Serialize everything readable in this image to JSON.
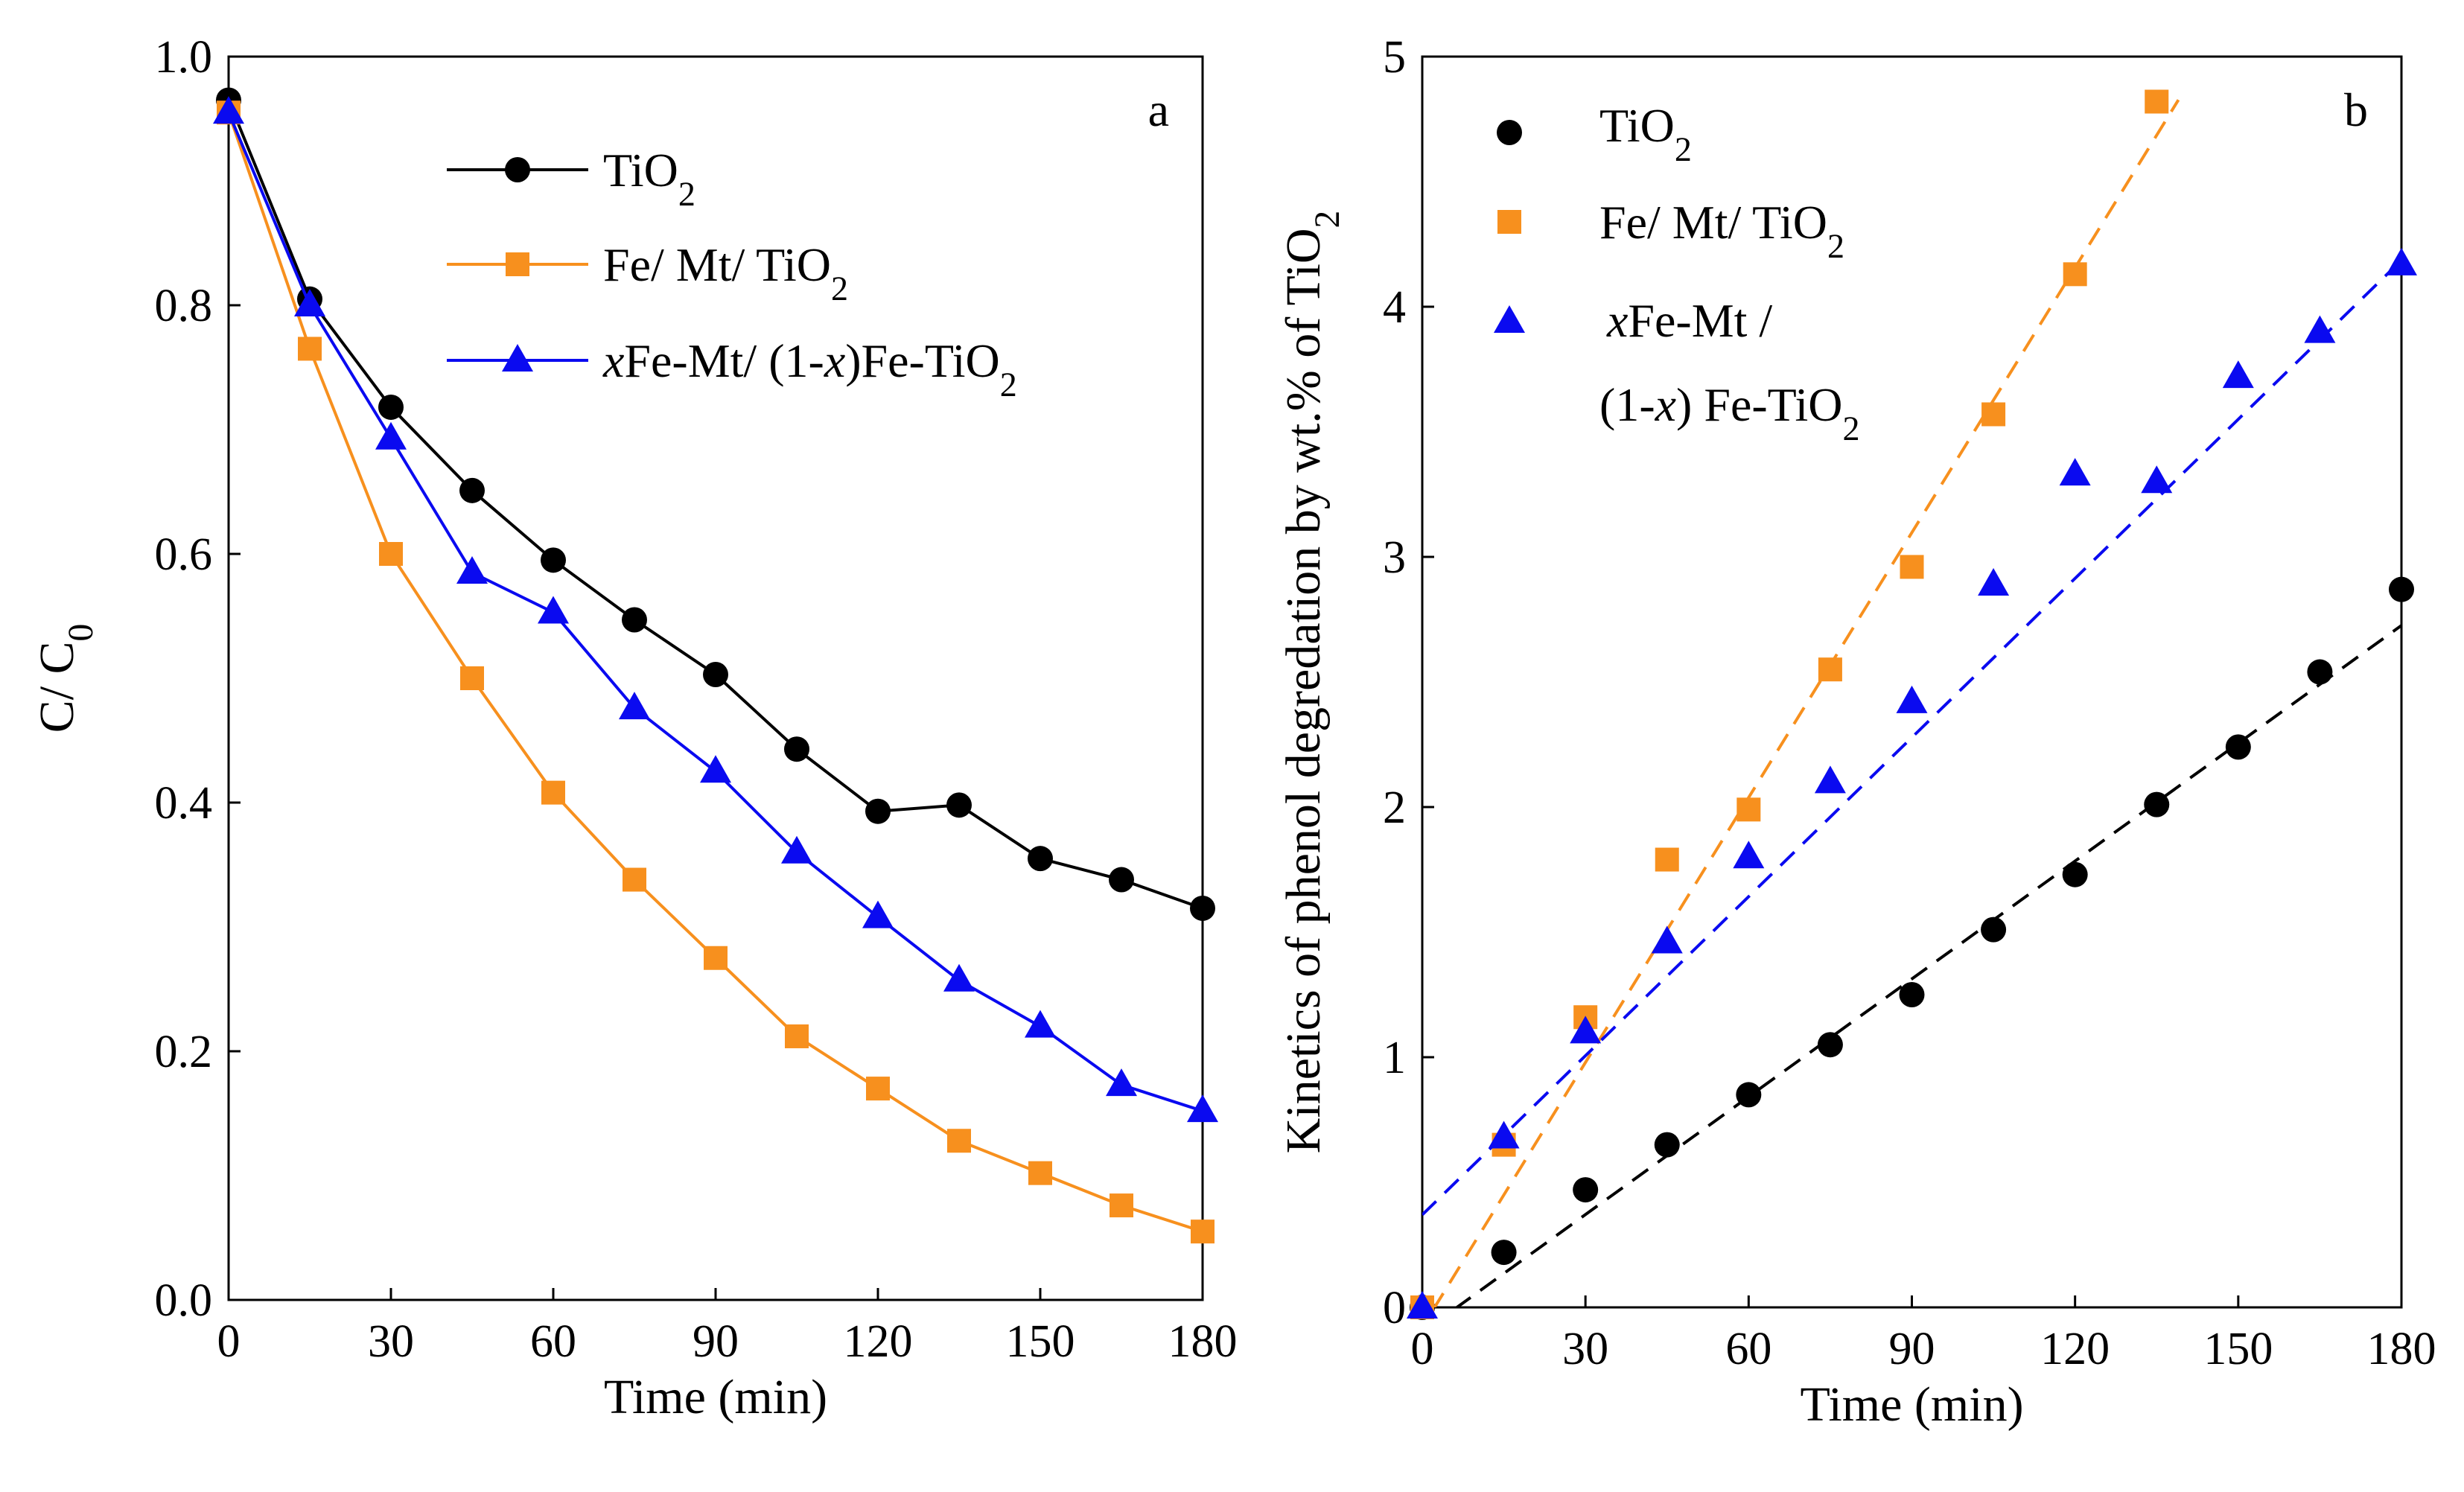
{
  "chart_data": [
    {
      "type": "line",
      "panel_label": "a",
      "xlabel": "Time (min)",
      "ylabel": {
        "main": "C/ C",
        "sub": "0"
      },
      "xlim": [
        0,
        180
      ],
      "ylim": [
        0.0,
        1.0
      ],
      "xticks": [
        0,
        30,
        60,
        90,
        120,
        150,
        180
      ],
      "xtick_labels": [
        "0",
        "30",
        "60",
        "90",
        "120",
        "150",
        "180"
      ],
      "yticks": [
        0.0,
        0.2,
        0.4,
        0.6,
        0.8,
        1.0
      ],
      "ytick_labels": [
        "0.0",
        "0.2",
        "0.4",
        "0.6",
        "0.8",
        "1.0"
      ],
      "legend_position": "top-right",
      "x": [
        0,
        15,
        30,
        45,
        60,
        75,
        90,
        105,
        120,
        135,
        150,
        165,
        180
      ],
      "series": [
        {
          "name": "TiO2",
          "legend": {
            "pre_italic": "",
            "pre": "TiO",
            "sub": "2",
            "italic": "",
            "post": ""
          },
          "color": "#000000",
          "marker": "circle",
          "values": [
            0.965,
            0.805,
            0.718,
            0.651,
            0.595,
            0.547,
            0.503,
            0.443,
            0.393,
            0.398,
            0.355,
            0.338,
            0.315
          ]
        },
        {
          "name": "Fe/ Mt/ TiO2",
          "legend": {
            "pre_italic": "",
            "pre": "Fe/ Mt/ TiO",
            "sub": "2",
            "italic": "",
            "post": ""
          },
          "color": "#f7901e",
          "marker": "square",
          "values": [
            0.955,
            0.765,
            0.6,
            0.5,
            0.408,
            0.338,
            0.275,
            0.212,
            0.17,
            0.128,
            0.102,
            0.076,
            0.055
          ]
        },
        {
          "name": "xFe-Mt/ (1-x)Fe-TiO2",
          "legend": {
            "pre_italic": "x",
            "pre": "Fe-Mt/ (1-",
            "italic": "x",
            "post": ")Fe-TiO",
            "sub": "2"
          },
          "color": "#0a0af0",
          "marker": "triangle",
          "values": [
            0.955,
            0.8,
            0.693,
            0.585,
            0.553,
            0.476,
            0.425,
            0.36,
            0.308,
            0.257,
            0.22,
            0.173,
            0.152
          ]
        }
      ]
    },
    {
      "type": "scatter",
      "panel_label": "b",
      "xlabel": "Time (min)",
      "ylabel": {
        "main": "Kinetics of phenol degredation by wt.% of TiO",
        "sub": "2"
      },
      "xlim": [
        0,
        180
      ],
      "ylim": [
        0,
        5
      ],
      "xticks": [
        0,
        30,
        60,
        90,
        120,
        150,
        180
      ],
      "xtick_labels": [
        "0",
        "30",
        "60",
        "90",
        "120",
        "150",
        "180"
      ],
      "yticks": [
        0,
        1,
        2,
        3,
        4,
        5
      ],
      "ytick_labels": [
        "0",
        "1",
        "2",
        "3",
        "4",
        "5"
      ],
      "legend_position": "top-left",
      "series": [
        {
          "name": "TiO2",
          "legend_lines": [
            {
              "pre_italic": "",
              "pre": "TiO",
              "sub": "2"
            }
          ],
          "color": "#000000",
          "marker": "circle",
          "x": [
            0,
            15,
            30,
            45,
            60,
            75,
            90,
            105,
            120,
            135,
            150,
            165,
            180
          ],
          "values": [
            0.0,
            0.22,
            0.47,
            0.65,
            0.85,
            1.05,
            1.25,
            1.51,
            1.73,
            2.01,
            2.24,
            2.54,
            2.87
          ],
          "fit": {
            "slope": 0.0157,
            "intercept": -0.1,
            "x_range": [
              6,
              180
            ]
          }
        },
        {
          "name": "Fe/ Mt/ TiO2",
          "legend_lines": [
            {
              "pre_italic": "",
              "pre": "Fe/ Mt/ TiO",
              "sub": "2"
            }
          ],
          "color": "#f7901e",
          "marker": "square",
          "x": [
            0,
            15,
            30,
            45,
            60,
            75,
            90,
            105,
            120,
            135
          ],
          "values": [
            0.0,
            0.65,
            1.16,
            1.79,
            1.99,
            2.55,
            2.96,
            3.57,
            4.13,
            4.82
          ],
          "fit": {
            "slope": 0.0353,
            "intercept": -0.08,
            "x_range": [
              2,
              139
            ]
          }
        },
        {
          "name": "xFe-Mt / (1-x) Fe-TiO2",
          "legend_lines": [
            {
              "pre_italic": "x",
              "pre": "Fe-Mt /",
              "sub": ""
            },
            {
              "pre_italic": "",
              "pre": "(1-",
              "italic": "x",
              "post": ") Fe-TiO",
              "sub": "2"
            }
          ],
          "color": "#0a0af0",
          "marker": "triangle",
          "x": [
            0,
            15,
            30,
            45,
            60,
            75,
            90,
            105,
            120,
            135,
            150,
            165,
            180
          ],
          "values": [
            0.0,
            0.68,
            1.1,
            1.46,
            1.8,
            2.1,
            2.42,
            2.89,
            3.33,
            3.3,
            3.72,
            3.9,
            4.17
          ],
          "fit": {
            "slope": 0.0212,
            "intercept": 0.37,
            "x_range": [
              0,
              180
            ]
          }
        }
      ]
    }
  ]
}
